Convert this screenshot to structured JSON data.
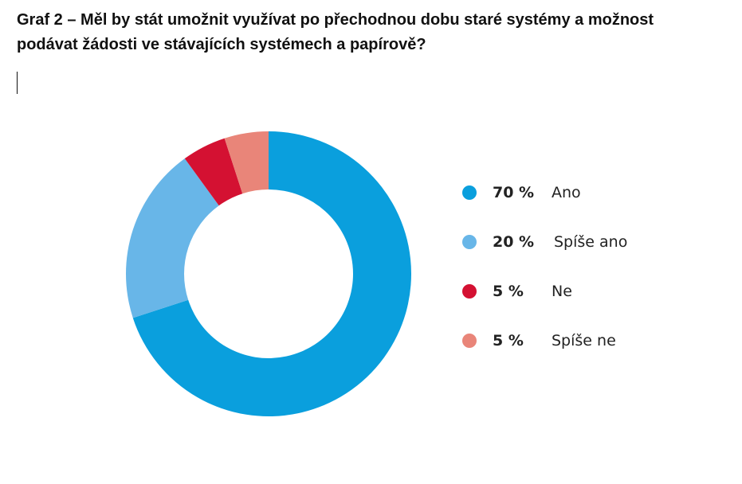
{
  "title": "Graf 2 – Měl by stát umožnit využívat po přechodnou dobu staré systémy a možnost podávat žádosti ve stávajících systémech a papírově?",
  "chart_data": {
    "type": "pie",
    "title": "Graf 2 – Měl by stát umožnit využívat po přechodnou dobu staré systémy a možnost podávat žádosti ve stávajících systémech a papírově?",
    "style": "donut",
    "legend_position": "right",
    "slices": [
      {
        "label": "Ano",
        "value": 70,
        "value_label": "70 %",
        "color": "#0a9fdd"
      },
      {
        "label": "Spíše ano",
        "value": 20,
        "value_label": "20 %",
        "color": "#68b6e8"
      },
      {
        "label": "Ne",
        "value": 5,
        "value_label": "5 %",
        "color": "#d41132"
      },
      {
        "label": "Spíše ne",
        "value": 5,
        "value_label": "5 %",
        "color": "#e98579"
      }
    ]
  }
}
